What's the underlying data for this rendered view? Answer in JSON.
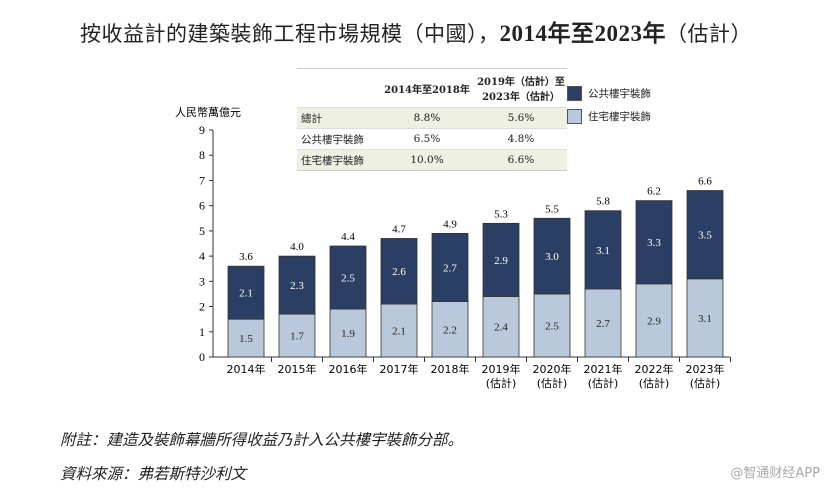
{
  "title_cn": "按收益計的建築裝飾工程市場規模（中國），",
  "title_years": "2014年至2023年",
  "title_suffix": "（估計）",
  "table": {
    "headers": [
      "",
      "2014年至2018年",
      "2019年（估計）至2023年（估計）"
    ],
    "rows": [
      [
        "總計",
        "8.8%",
        "5.6%"
      ],
      [
        "公共樓宇裝飾",
        "6.5%",
        "4.8%"
      ],
      [
        "住宅樓宇裝飾",
        "10.0%",
        "6.6%"
      ]
    ]
  },
  "chart_data": {
    "type": "bar",
    "stacked": true,
    "ylabel": "人民幣萬億元",
    "ylim": [
      0,
      9
    ],
    "yticks": [
      "0",
      "1",
      "2",
      "3",
      "4",
      "5",
      "6",
      "7",
      "8",
      "9"
    ],
    "categories": [
      "2014年",
      "2015年",
      "2016年",
      "2017年",
      "2018年",
      "2019年\n(估計)",
      "2020年\n(估計)",
      "2021年\n(估計)",
      "2022年\n(估計)",
      "2023年\n(估計)"
    ],
    "series": [
      {
        "name": "住宅樓宇裝飾",
        "color": "#b9c8da",
        "values": [
          1.5,
          1.7,
          1.9,
          2.1,
          2.2,
          2.4,
          2.5,
          2.7,
          2.9,
          3.1
        ]
      },
      {
        "name": "公共樓宇裝飾",
        "color": "#2b3e63",
        "values": [
          2.1,
          2.3,
          2.5,
          2.6,
          2.7,
          2.9,
          3.0,
          3.1,
          3.3,
          3.5
        ]
      }
    ],
    "totals": [
      "3.6",
      "4.0",
      "4.4",
      "4.7",
      "4.9",
      "5.3",
      "5.5",
      "5.8",
      "6.2",
      "6.6"
    ],
    "legend": [
      "公共樓宇裝飾",
      "住宅樓宇裝飾"
    ]
  },
  "notes": {
    "note": "附註：建造及裝飾幕牆所得收益乃計入公共樓宇裝飾分部。",
    "source": "資料來源：弗若斯特沙利文"
  },
  "watermark": "@智通财经APP"
}
